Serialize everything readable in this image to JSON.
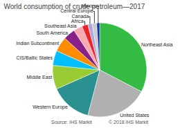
{
  "chart_data": {
    "type": "pie",
    "title": "World consumption of crude petroleum—2017",
    "categories": [
      "Northeast Asia",
      "United States",
      "Western Europe",
      "Middle East",
      "CIS/Baltic States",
      "Indian Subcontinent",
      "South America",
      "Southeast Asia",
      "Africa",
      "Canada",
      "Central Europe",
      "Mexico"
    ],
    "values": [
      32,
      21,
      14,
      8,
      5,
      5,
      4,
      3,
      2,
      1.5,
      1.5,
      1
    ],
    "colors": [
      "#33bb44",
      "#b0b0b0",
      "#2a9090",
      "#99cc33",
      "#00bfff",
      "#ff8c00",
      "#882288",
      "#f9a8b0",
      "#ee2222",
      "#aaaadd",
      "#cccccc",
      "#1133aa"
    ],
    "annotations": [
      "Source: IHS Markit",
      "© 2018 IHS Markit"
    ]
  }
}
